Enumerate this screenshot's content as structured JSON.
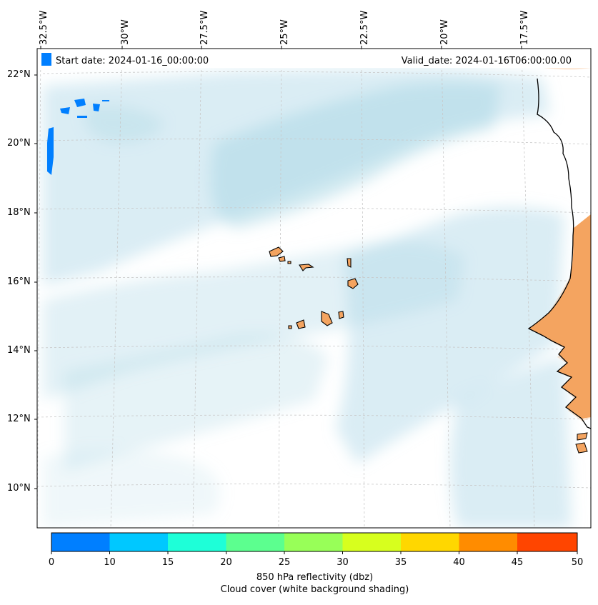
{
  "header": {
    "start_date": "Start date: 2024-01-16_00:00:00",
    "valid_date": "Valid_date: 2024-01-16T06:00:00.00"
  },
  "axes": {
    "lon_labels": [
      "32.5°W",
      "30°W",
      "27.5°W",
      "25°W",
      "22.5°W",
      "20°W",
      "17.5°W"
    ],
    "lat_labels": [
      "22°N",
      "20°N",
      "18°N",
      "16°N",
      "14°N",
      "12°N",
      "10°N"
    ]
  },
  "colorbar": {
    "ticks": [
      "0",
      "10",
      "15",
      "20",
      "25",
      "30",
      "35",
      "40",
      "45",
      "50"
    ],
    "colors": [
      "#007fff",
      "#00c8ff",
      "#1effd8",
      "#5cff8f",
      "#98ff58",
      "#d7ff1e",
      "#ffd700",
      "#ff8c00",
      "#ff4500"
    ],
    "label_line1": "850 hPa reflectivity (dbz)",
    "label_line2": "Cloud cover (white background shading)"
  },
  "colors": {
    "land": "#f4a460",
    "cloud": "#add8e6",
    "grid": "#c8c8c8"
  }
}
